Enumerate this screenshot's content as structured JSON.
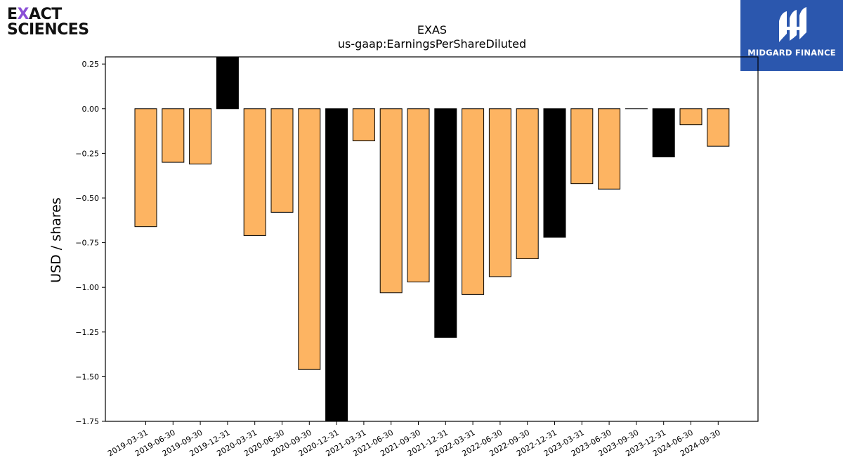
{
  "logos": {
    "left_line1": "EXACT",
    "left_line2": "SCIENCES",
    "right_text": "MIDGARD FINANCE",
    "right_bg": "#2b57ae",
    "left_accent": "#8a4fd6"
  },
  "chart_data": {
    "type": "bar",
    "title": "EXAS",
    "subtitle": "us-gaap:EarningsPerShareDiluted",
    "xlabel": "",
    "ylabel": "USD / shares",
    "ylim": [
      -1.75,
      0.29
    ],
    "yticks": [
      "0.25",
      "0.00",
      "−0.25",
      "−0.50",
      "−0.75",
      "−1.00",
      "−1.25",
      "−1.50",
      "−1.75"
    ],
    "ytick_values": [
      0.25,
      0.0,
      -0.25,
      -0.5,
      -0.75,
      -1.0,
      -1.25,
      -1.5,
      -1.75
    ],
    "grid": false,
    "colors": {
      "quarter": "#fdb462",
      "year_end": "#000000",
      "edge": "#000000"
    },
    "categories": [
      "2019-03-31",
      "2019-06-30",
      "2019-09-30",
      "2019-12-31",
      "2020-03-31",
      "2020-06-30",
      "2020-09-30",
      "2020-12-31",
      "2021-03-31",
      "2021-06-30",
      "2021-09-30",
      "2021-12-31",
      "2022-03-31",
      "2022-06-30",
      "2022-09-30",
      "2022-12-31",
      "2023-03-31",
      "2023-06-30",
      "2023-09-30",
      "2023-12-31",
      "2024-06-30",
      "2024-09-30"
    ],
    "values": [
      -0.66,
      -0.3,
      -0.31,
      0.3,
      -0.71,
      -0.58,
      -1.46,
      -1.85,
      -0.18,
      -1.03,
      -0.97,
      -1.28,
      -1.04,
      -0.94,
      -0.84,
      -0.72,
      -0.42,
      -0.45,
      0.0,
      -0.27,
      -0.09,
      -0.21
    ],
    "year_end": [
      false,
      false,
      false,
      true,
      false,
      false,
      false,
      true,
      false,
      false,
      false,
      true,
      false,
      false,
      false,
      true,
      false,
      false,
      false,
      true,
      false,
      false
    ]
  }
}
